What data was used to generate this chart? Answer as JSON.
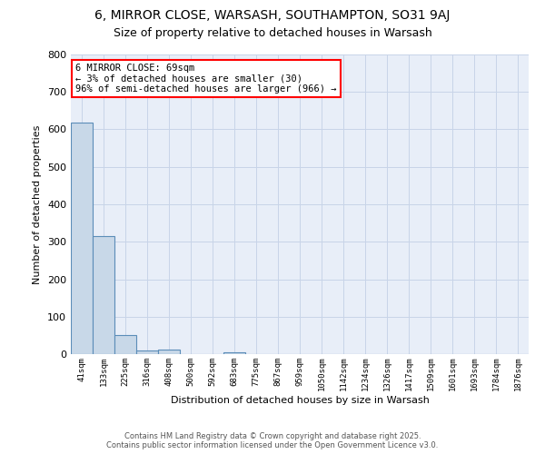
{
  "title_line1": "6, MIRROR CLOSE, WARSASH, SOUTHAMPTON, SO31 9AJ",
  "title_line2": "Size of property relative to detached houses in Warsash",
  "xlabel": "Distribution of detached houses by size in Warsash",
  "ylabel": "Number of detached properties",
  "bar_color": "#c8d8e8",
  "bar_edge_color": "#5b8db8",
  "background_color": "#e8eef8",
  "categories": [
    "41sqm",
    "133sqm",
    "225sqm",
    "316sqm",
    "408sqm",
    "500sqm",
    "592sqm",
    "683sqm",
    "775sqm",
    "867sqm",
    "959sqm",
    "1050sqm",
    "1142sqm",
    "1234sqm",
    "1326sqm",
    "1417sqm",
    "1509sqm",
    "1601sqm",
    "1693sqm",
    "1784sqm",
    "1876sqm"
  ],
  "values": [
    617,
    316,
    52,
    10,
    12,
    0,
    0,
    5,
    0,
    0,
    0,
    0,
    0,
    0,
    0,
    0,
    0,
    0,
    0,
    0,
    0
  ],
  "ylim": [
    0,
    800
  ],
  "yticks": [
    0,
    100,
    200,
    300,
    400,
    500,
    600,
    700,
    800
  ],
  "annotation_text": "6 MIRROR CLOSE: 69sqm\n← 3% of detached houses are smaller (30)\n96% of semi-detached houses are larger (966) →",
  "footer_line1": "Contains HM Land Registry data © Crown copyright and database right 2025.",
  "footer_line2": "Contains public sector information licensed under the Open Government Licence v3.0.",
  "grid_color": "#c8d4e8",
  "title_fontsize": 10,
  "subtitle_fontsize": 9
}
